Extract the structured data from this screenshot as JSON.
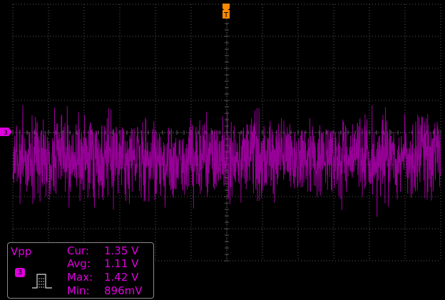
{
  "colors": {
    "background": "#000000",
    "grid": "#5a5a5a",
    "waveform": "#b000b0",
    "channel": "#e000e0",
    "trigger": "#ff8a00",
    "panel_border": "#8a8a8a"
  },
  "display": {
    "h_divisions": 12,
    "v_divisions": 8,
    "grid_style": "dotted"
  },
  "channel": {
    "number": "3",
    "marker_icon": "channel-ground-arrow"
  },
  "trigger": {
    "label": "T",
    "marker_icon": "trigger-position-arrow"
  },
  "waveform": {
    "type": "noise",
    "center_division": 4.8,
    "peak_to_peak_volts": 1.42
  },
  "measurement": {
    "name": "Vpp",
    "channel": "3",
    "icon": "pulse-icon",
    "rows": [
      {
        "label": "Cur:",
        "value": "1.35 V"
      },
      {
        "label": "Avg:",
        "value": "1.11 V"
      },
      {
        "label": "Max:",
        "value": "1.42 V"
      },
      {
        "label": "Min:",
        "value": "896mV"
      }
    ]
  }
}
